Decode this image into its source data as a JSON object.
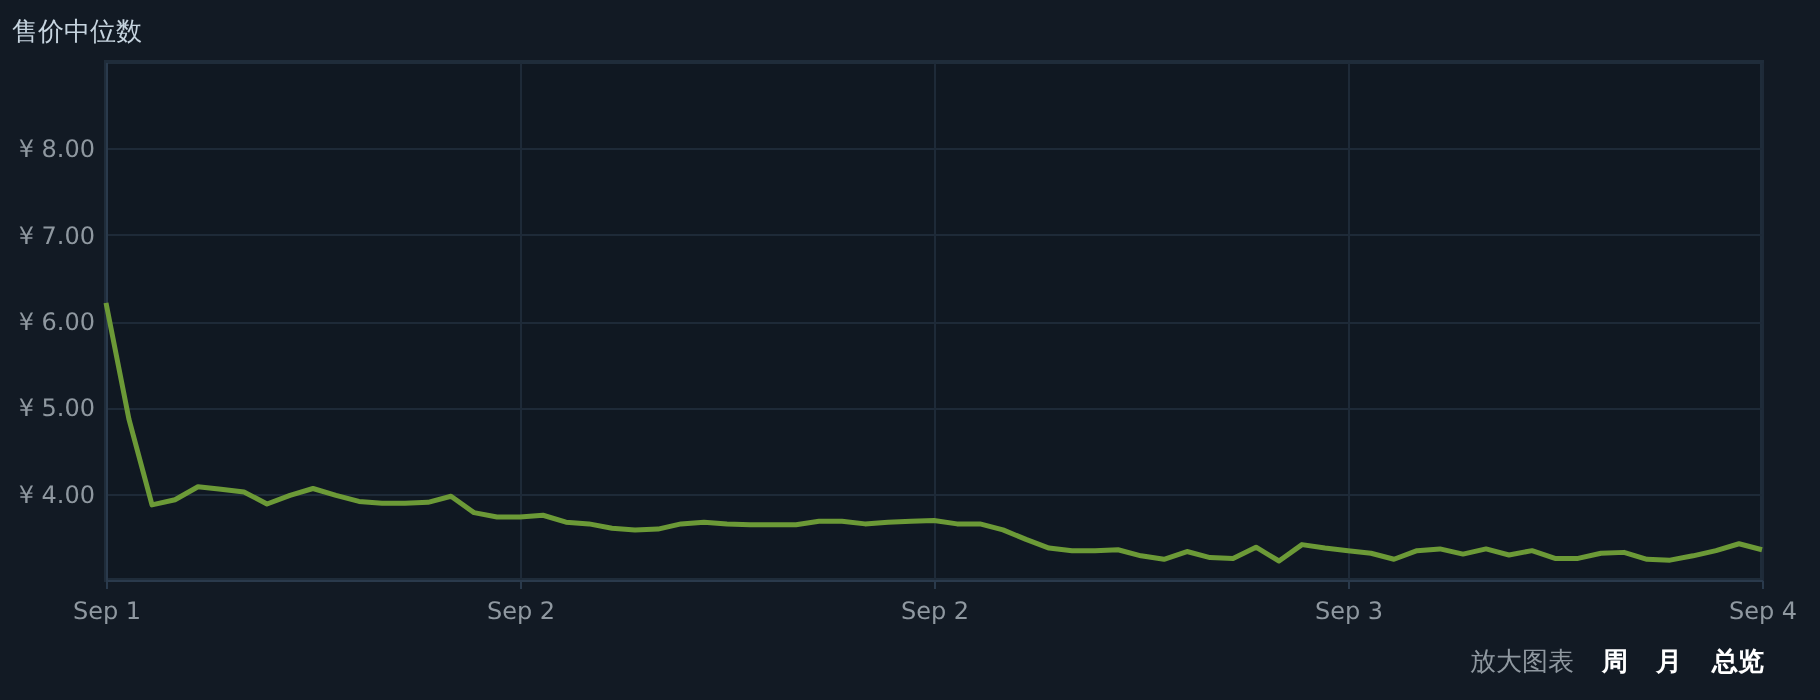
{
  "chart_data": {
    "type": "line",
    "title": "售价中位数",
    "categories": [
      "Sep 1",
      null,
      null,
      null,
      null,
      null,
      null,
      null,
      null,
      null,
      null,
      null,
      null,
      null,
      null,
      null,
      null,
      null,
      "Sep 2",
      null,
      null,
      null,
      null,
      null,
      null,
      null,
      null,
      null,
      null,
      null,
      null,
      null,
      null,
      null,
      null,
      null,
      "Sep 2",
      null,
      null,
      null,
      null,
      null,
      null,
      null,
      null,
      null,
      null,
      null,
      null,
      null,
      null,
      null,
      null,
      null,
      "Sep 3",
      null,
      null,
      null,
      null,
      null,
      null,
      null,
      null,
      null,
      null,
      null,
      null,
      null,
      null,
      null,
      null,
      null,
      "Sep 4"
    ],
    "series": [
      {
        "color": "#6c9a37",
        "values": [
          6.21,
          4.86,
          3.87,
          3.93,
          4.08,
          4.05,
          4.02,
          3.88,
          3.98,
          4.06,
          3.98,
          3.91,
          3.89,
          3.89,
          3.9,
          3.97,
          3.78,
          3.73,
          3.73,
          3.75,
          3.67,
          3.65,
          3.6,
          3.58,
          3.59,
          3.65,
          3.67,
          3.65,
          3.64,
          3.64,
          3.64,
          3.68,
          3.68,
          3.65,
          3.67,
          3.68,
          3.69,
          3.65,
          3.65,
          3.58,
          3.47,
          3.37,
          3.34,
          3.34,
          3.35,
          3.28,
          3.24,
          3.33,
          3.26,
          3.25,
          3.38,
          3.22,
          3.41,
          3.37,
          3.34,
          3.31,
          3.24,
          3.34,
          3.36,
          3.3,
          3.36,
          3.29,
          3.34,
          3.25,
          3.25,
          3.31,
          3.32,
          3.24,
          3.23,
          3.28,
          3.34,
          3.42,
          3.35
        ]
      }
    ],
    "ylim": [
      3,
      9
    ],
    "yticks": [
      {
        "value": 4,
        "label": "¥ 4.00"
      },
      {
        "value": 5,
        "label": "¥ 5.00"
      },
      {
        "value": 6,
        "label": "¥ 6.00"
      },
      {
        "value": 7,
        "label": "¥ 7.00"
      },
      {
        "value": 8,
        "label": "¥ 8.00"
      }
    ],
    "grid": true,
    "marker": "none",
    "line_style": "solid",
    "annotations": [
      "放大图表",
      "周",
      "月",
      "总览"
    ]
  }
}
